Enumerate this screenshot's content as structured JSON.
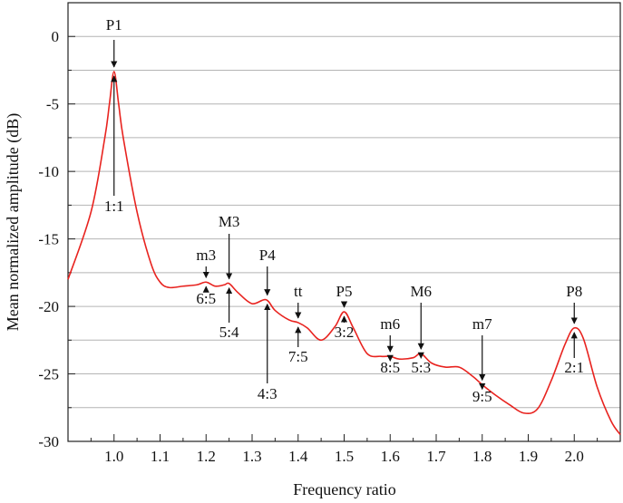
{
  "chart_data": {
    "type": "line",
    "title": "",
    "xlabel": "Frequency ratio",
    "ylabel": "Mean normalized amplitude (dB)",
    "xlim": [
      0.9,
      2.1
    ],
    "ylim": [
      -30,
      2.5
    ],
    "xticks": [
      "1.0",
      "1.1",
      "1.2",
      "1.3",
      "1.4",
      "1.5",
      "1.6",
      "1.7",
      "1.8",
      "1.9",
      "2.0"
    ],
    "yticks": [
      "0",
      "-5",
      "-10",
      "-15",
      "-20",
      "-25",
      "-30"
    ],
    "grid": "horizontal",
    "line_color": "#e8231f",
    "series": [
      {
        "x": [
          0.9,
          0.95,
          0.98,
          0.99,
          1.0,
          1.01,
          1.02,
          1.05,
          1.08,
          1.1,
          1.12,
          1.15,
          1.18,
          1.2,
          1.22,
          1.24,
          1.25,
          1.27,
          1.3,
          1.33,
          1.35,
          1.38,
          1.4,
          1.42,
          1.45,
          1.48,
          1.5,
          1.52,
          1.55,
          1.58,
          1.6,
          1.62,
          1.65,
          1.667,
          1.69,
          1.72,
          1.75,
          1.78,
          1.8,
          1.83,
          1.86,
          1.89,
          1.92,
          1.95,
          1.98,
          2.0,
          2.02,
          2.05,
          2.08,
          2.1
        ],
        "y": [
          -18.0,
          -13.0,
          -7.5,
          -5.0,
          -2.6,
          -5.0,
          -7.5,
          -13.0,
          -16.8,
          -18.2,
          -18.6,
          -18.5,
          -18.4,
          -18.2,
          -18.5,
          -18.4,
          -18.3,
          -19.0,
          -19.8,
          -19.5,
          -20.3,
          -21.0,
          -21.2,
          -21.6,
          -22.5,
          -21.5,
          -20.4,
          -21.6,
          -23.5,
          -23.7,
          -23.7,
          -23.9,
          -23.8,
          -23.5,
          -24.2,
          -24.5,
          -24.5,
          -25.2,
          -25.8,
          -26.6,
          -27.3,
          -27.9,
          -27.6,
          -25.5,
          -22.8,
          -21.6,
          -22.4,
          -26.0,
          -28.5,
          -29.5
        ]
      }
    ],
    "annotations": [
      {
        "label": "P1",
        "ratio": "1:1",
        "x": 1.0,
        "y": -2.6
      },
      {
        "label": "m3",
        "ratio": "6:5",
        "x": 1.2,
        "y": -18.2
      },
      {
        "label": "M3",
        "ratio": "5:4",
        "x": 1.25,
        "y": -18.3
      },
      {
        "label": "P4",
        "ratio": "4:3",
        "x": 1.333,
        "y": -19.5
      },
      {
        "label": "tt",
        "ratio": "7:5",
        "x": 1.4,
        "y": -21.2
      },
      {
        "label": "P5",
        "ratio": "3:2",
        "x": 1.5,
        "y": -20.4
      },
      {
        "label": "m6",
        "ratio": "8:5",
        "x": 1.6,
        "y": -23.7
      },
      {
        "label": "M6",
        "ratio": "5:3",
        "x": 1.667,
        "y": -23.5
      },
      {
        "label": "m7",
        "ratio": "9:5",
        "x": 1.8,
        "y": -25.8
      },
      {
        "label": "P8",
        "ratio": "2:1",
        "x": 2.0,
        "y": -21.6
      }
    ]
  }
}
